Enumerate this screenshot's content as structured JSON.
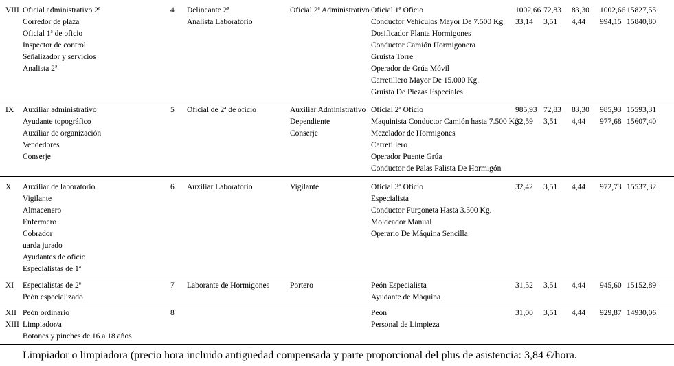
{
  "table": {
    "rows": [
      {
        "levels": [
          "VIII"
        ],
        "old_categories": [
          "Oficial administrativo 2ª",
          "Corredor de plaza",
          "Oficial 1ª de oficio",
          "Inspector de control",
          "Señalizador y servicios",
          "Analista 2ª"
        ],
        "group_number": "4",
        "group_categories": [
          "Delineante 2ª",
          "Analista Laboratorio"
        ],
        "equivalent_categories": [
          "Oficial 2ª Administrativo"
        ],
        "job_positions": [
          "Oficial 1ª Oficio",
          "Conductor Vehículos Mayor De 7.500 Kg.",
          "Dosificador Planta Hormigones",
          "Conductor Camión Hormigonera",
          "Gruista Torre",
          "Operador de Grúa Móvil",
          "Carretillero Mayor De 15.000 Kg.",
          "Gruista De Piezas Especiales"
        ],
        "values": [
          [
            "1002,66",
            "72,83",
            "83,30",
            "1002,66",
            "15827,55"
          ],
          [
            "33,14",
            "3,51",
            "4,44",
            "994,15",
            "15840,80"
          ]
        ]
      },
      {
        "levels": [
          "IX"
        ],
        "old_categories": [
          "Auxiliar administrativo",
          "Ayudante topográfico",
          "Auxiliar de organización",
          "Vendedores",
          "Conserje"
        ],
        "group_number": "5",
        "group_categories": [
          "Oficial de 2ª de oficio"
        ],
        "equivalent_categories": [
          "Auxiliar Administrativo",
          "Dependiente",
          "Conserje"
        ],
        "job_positions": [
          "Oficial 2ª Oficio",
          "Maquinista Conductor Camión hasta 7.500 Kg",
          "Mezclador de Hormigones",
          "Carretillero",
          "Operador Puente Grúa",
          "Conductor de Palas Palista De Hormigón"
        ],
        "values": [
          [
            "985,93",
            "72,83",
            "83,30",
            "985,93",
            "15593,31"
          ],
          [
            "32,59",
            "3,51",
            "4,44",
            "977,68",
            "15607,40"
          ]
        ]
      },
      {
        "levels": [
          "X"
        ],
        "old_categories": [
          "Auxiliar de laboratorio",
          "Vigilante",
          "Almacenero",
          "Enfermero",
          "Cobrador",
          "uarda jurado",
          "Ayudantes de oficio",
          "Especialistas de 1ª"
        ],
        "group_number": "6",
        "group_categories": [
          "Auxiliar Laboratorio"
        ],
        "equivalent_categories": [
          "Vigilante"
        ],
        "job_positions": [
          "Oficial 3ª Oficio",
          "Especialista",
          "Conductor Furgoneta Hasta 3.500 Kg.",
          "Moldeador Manual",
          "Operario De Máquina Sencilla"
        ],
        "values": [
          [
            "32,42",
            "3,51",
            "4,44",
            "972,73",
            "15537,32"
          ]
        ]
      },
      {
        "levels": [
          "XI"
        ],
        "old_categories": [
          "Especialistas de 2ª",
          "Peón especializado"
        ],
        "group_number": "7",
        "group_categories": [
          "Laborante de Hormigones"
        ],
        "equivalent_categories": [
          "Portero"
        ],
        "job_positions": [
          "Peón Especialista",
          "Ayudante de Máquina"
        ],
        "values": [
          [
            "31,52",
            "3,51",
            "4,44",
            "945,60",
            "15152,89"
          ]
        ]
      },
      {
        "levels": [
          "XII",
          "XIII"
        ],
        "old_categories": [
          "Peón ordinario",
          "Limpiador/a",
          "Botones y pinches de 16 a 18 años"
        ],
        "group_number": "8",
        "group_categories": [],
        "equivalent_categories": [],
        "job_positions": [
          "Peón",
          "Personal de Limpieza"
        ],
        "values": [
          [
            "31,00",
            "3,51",
            "4,44",
            "929,87",
            "14930,06"
          ]
        ]
      }
    ]
  },
  "document": {
    "footer_note": "Limpiador o limpiadora (precio hora incluido antigüedad compensada y parte proporcional del plus de asistencia: 3,84 €/hora."
  }
}
